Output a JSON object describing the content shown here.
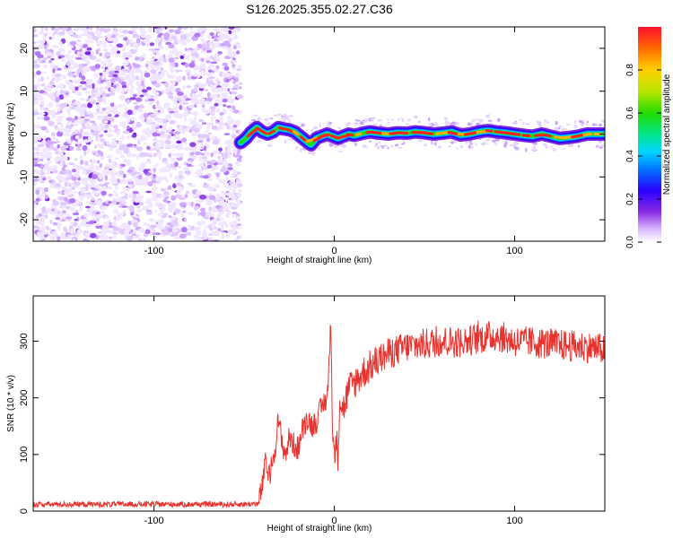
{
  "title": "S126.2025.355.02.27.C36",
  "chart_data": [
    {
      "type": "heatmap",
      "xlabel": "Height of straight line (km)",
      "ylabel": "Frequency (Hz)",
      "xlim": [
        -167,
        150
      ],
      "ylim": [
        -25,
        25
      ],
      "x_ticks": [
        -100,
        0,
        100
      ],
      "y_ticks": [
        -20,
        -10,
        0,
        10,
        20
      ],
      "noise_region_x": [
        -167,
        -52
      ],
      "ridge": {
        "x": [
          -52,
          -49,
          -46,
          -43,
          -40,
          -37,
          -34,
          -31,
          -28,
          -25,
          -22,
          -19,
          -16,
          -13,
          -10,
          -7,
          -4,
          -1,
          2,
          5,
          8,
          11,
          14,
          17,
          20,
          25,
          30,
          35,
          40,
          45,
          50,
          55,
          60,
          65,
          70,
          75,
          80,
          85,
          90,
          95,
          100,
          105,
          110,
          115,
          120,
          125,
          130,
          135,
          140,
          145,
          150
        ],
        "y": [
          -2,
          -1,
          0.5,
          1.5,
          0.5,
          0,
          0.5,
          1.5,
          1.2,
          1,
          0.5,
          -0.5,
          -1.5,
          -2.5,
          -1,
          -0.5,
          0,
          -0.5,
          -1,
          -0.5,
          0,
          -0.3,
          0,
          0.3,
          0.5,
          0.2,
          0,
          0.3,
          0.2,
          0.5,
          0.3,
          0,
          0.2,
          0.5,
          -0.2,
          0,
          0.5,
          0.8,
          0.5,
          0.3,
          0,
          -0.3,
          -0.5,
          0,
          -0.5,
          -1,
          -0.8,
          -0.5,
          0,
          0,
          0
        ]
      },
      "colorbar": {
        "label": "Normalized spectral amplitude",
        "ticks": [
          0.0,
          0.2,
          0.4,
          0.6,
          0.8
        ],
        "range": [
          0,
          1
        ]
      }
    },
    {
      "type": "line",
      "xlabel": "Height of straight line (km)",
      "ylabel": "SNR (10 * v/v)",
      "xlim": [
        -167,
        150
      ],
      "ylim": [
        0,
        380
      ],
      "x_ticks": [
        -100,
        0,
        100
      ],
      "y_ticks": [
        0,
        100,
        200,
        300
      ],
      "color": "#e8322e",
      "series": [
        {
          "name": "SNR",
          "x": [
            -167,
            -140,
            -110,
            -80,
            -55,
            -42,
            -40,
            -38,
            -36,
            -33,
            -31,
            -29,
            -27,
            -25,
            -22,
            -20,
            -18,
            -15,
            -12,
            -10,
            -8,
            -6,
            -4,
            -3,
            -2,
            -1,
            0,
            1,
            2,
            3,
            5,
            8,
            12,
            16,
            20,
            25,
            30,
            40,
            50,
            60,
            70,
            80,
            90,
            100,
            110,
            120,
            130,
            140,
            150
          ],
          "y": [
            12,
            12,
            12,
            12,
            12,
            13,
            45,
            88,
            60,
            110,
            160,
            120,
            100,
            130,
            115,
            110,
            140,
            165,
            150,
            160,
            175,
            190,
            200,
            250,
            340,
            150,
            90,
            130,
            100,
            200,
            180,
            215,
            230,
            245,
            255,
            268,
            278,
            290,
            295,
            300,
            298,
            305,
            310,
            300,
            298,
            295,
            292,
            290,
            285
          ]
        }
      ]
    }
  ]
}
